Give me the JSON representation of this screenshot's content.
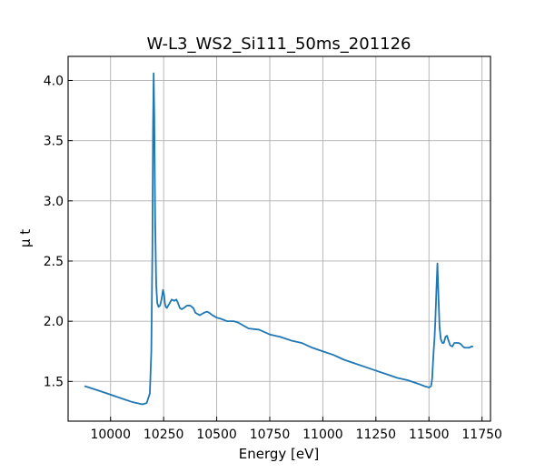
{
  "chart_data": {
    "type": "line",
    "title": "W-L3_WS2_Si111_50ms_201126",
    "xlabel": "Energy [eV]",
    "ylabel": "μ t",
    "xlim": [
      9800,
      11790
    ],
    "ylim": [
      1.17,
      4.2
    ],
    "xticks": [
      10000,
      10250,
      10500,
      10750,
      11000,
      11250,
      11500,
      11750
    ],
    "yticks": [
      1.5,
      2.0,
      2.5,
      3.0,
      3.5,
      4.0
    ],
    "xtick_labels": [
      "10000",
      "10250",
      "10500",
      "10750",
      "11000",
      "11250",
      "11500",
      "11750"
    ],
    "ytick_labels": [
      "1.5",
      "2.0",
      "2.5",
      "3.0",
      "3.5",
      "4.0"
    ],
    "grid": true,
    "series": [
      {
        "color": "#1f77b4",
        "x": [
          9880,
          9950,
          10000,
          10050,
          10100,
          10150,
          10170,
          10185,
          10192,
          10197,
          10200,
          10203,
          10206,
          10210,
          10215,
          10220,
          10226,
          10233,
          10240,
          10247,
          10252,
          10256,
          10260,
          10265,
          10275,
          10288,
          10300,
          10310,
          10318,
          10326,
          10335,
          10345,
          10360,
          10375,
          10390,
          10400,
          10420,
          10440,
          10455,
          10465,
          10480,
          10500,
          10520,
          10550,
          10580,
          10600,
          10620,
          10650,
          10700,
          10750,
          10800,
          10850,
          10900,
          10950,
          11000,
          11050,
          11100,
          11150,
          11200,
          11250,
          11300,
          11350,
          11400,
          11450,
          11480,
          11500,
          11510,
          11515,
          11518,
          11522,
          11526,
          11530,
          11535,
          11540,
          11545,
          11550,
          11556,
          11563,
          11570,
          11578,
          11585,
          11592,
          11600,
          11610,
          11620,
          11630,
          11640,
          11650,
          11660,
          11668,
          11680,
          11690,
          11700,
          11705
        ],
        "y": [
          1.46,
          1.42,
          1.39,
          1.36,
          1.33,
          1.31,
          1.32,
          1.4,
          1.75,
          2.6,
          3.6,
          4.06,
          3.7,
          2.85,
          2.3,
          2.15,
          2.12,
          2.13,
          2.18,
          2.26,
          2.22,
          2.15,
          2.12,
          2.11,
          2.14,
          2.18,
          2.17,
          2.18,
          2.15,
          2.11,
          2.1,
          2.11,
          2.13,
          2.13,
          2.11,
          2.07,
          2.05,
          2.07,
          2.08,
          2.07,
          2.05,
          2.03,
          2.02,
          2.0,
          2.0,
          1.99,
          1.97,
          1.94,
          1.93,
          1.89,
          1.87,
          1.84,
          1.82,
          1.78,
          1.75,
          1.72,
          1.68,
          1.65,
          1.62,
          1.59,
          1.56,
          1.53,
          1.51,
          1.48,
          1.46,
          1.45,
          1.46,
          1.52,
          1.62,
          1.75,
          1.85,
          2.0,
          2.25,
          2.48,
          2.2,
          1.95,
          1.85,
          1.82,
          1.82,
          1.87,
          1.88,
          1.84,
          1.8,
          1.79,
          1.82,
          1.82,
          1.82,
          1.81,
          1.79,
          1.78,
          1.78,
          1.78,
          1.79,
          1.79
        ]
      }
    ]
  }
}
